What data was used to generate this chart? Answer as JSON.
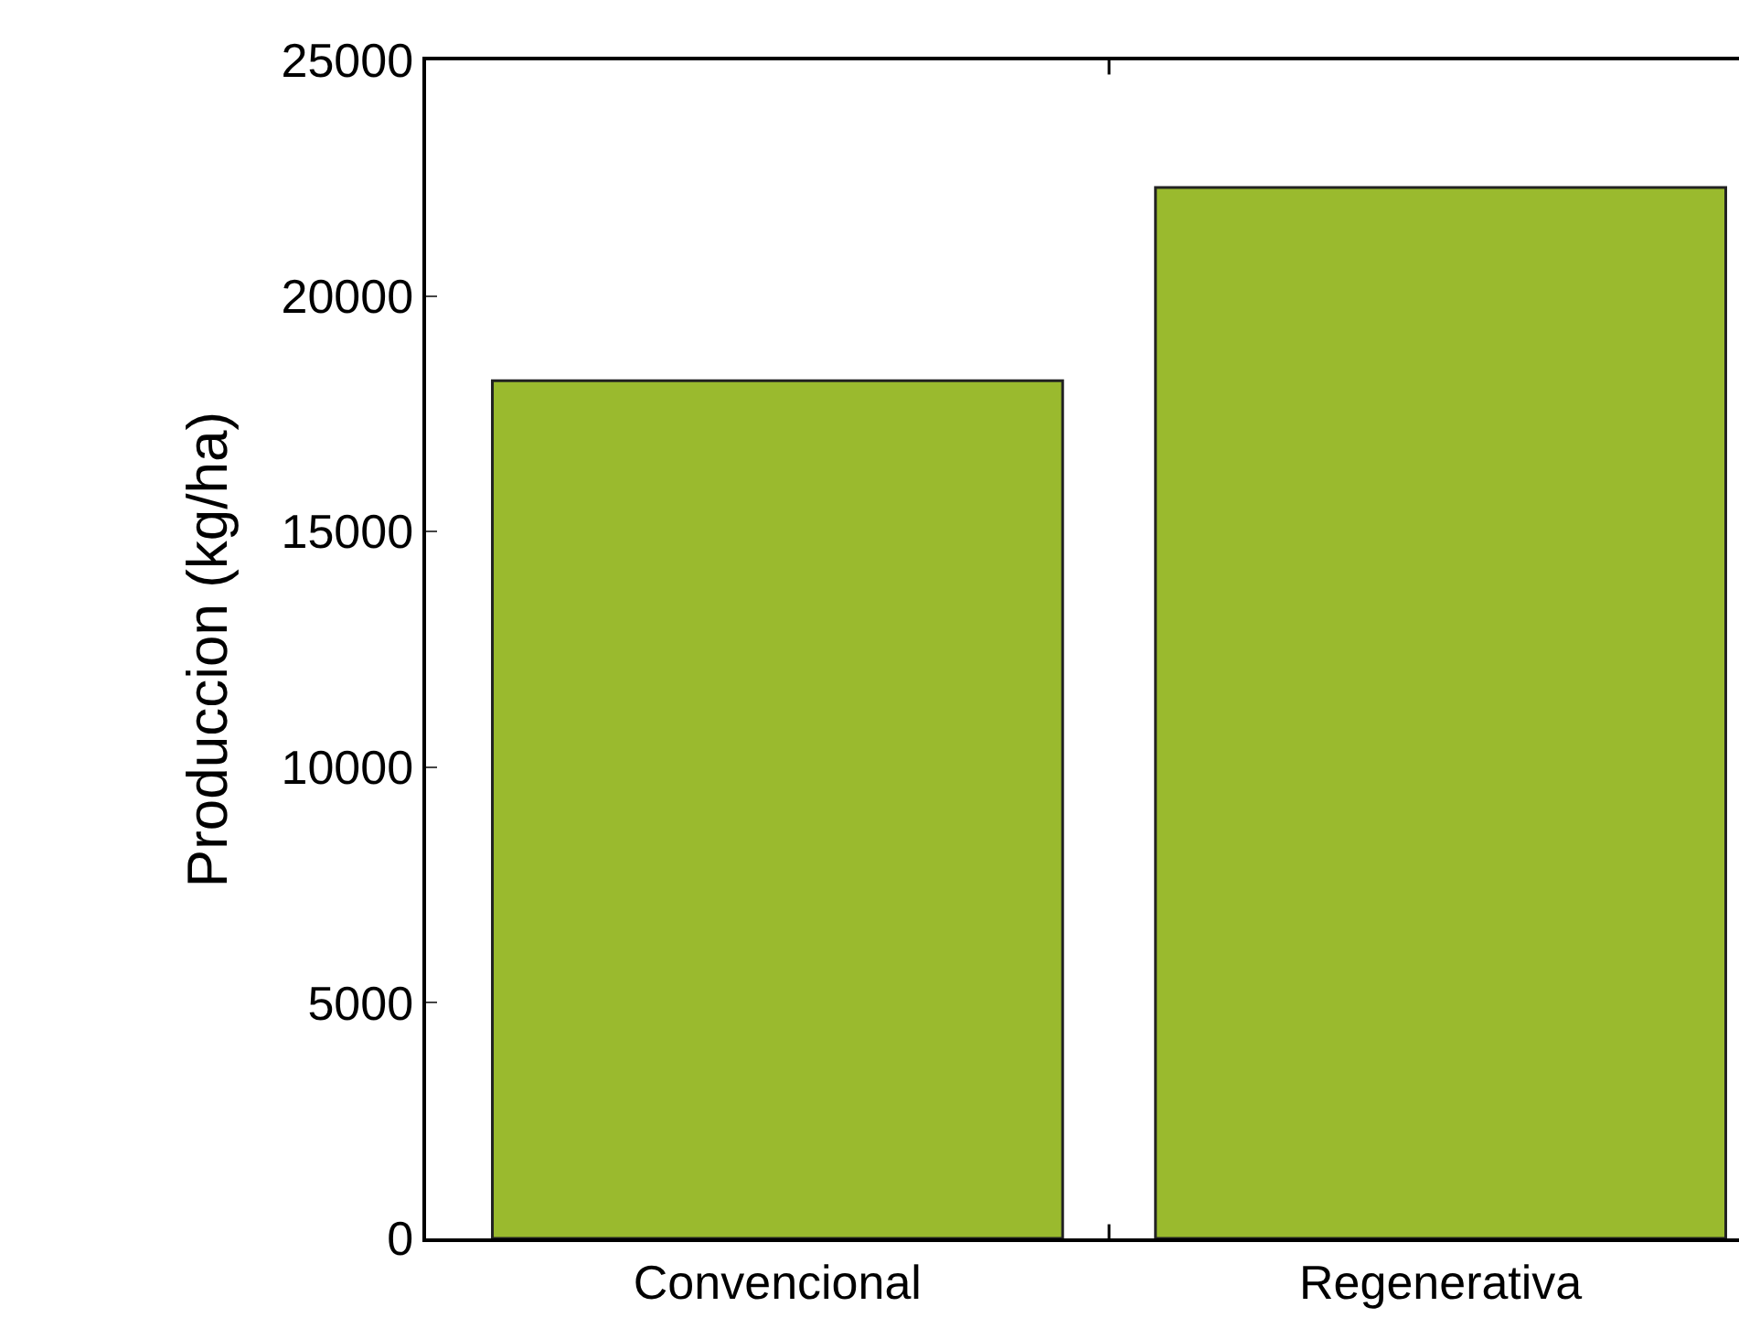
{
  "chart_data": {
    "type": "bar",
    "ylabel": "Produccion (kg/ha)",
    "categories": [
      "Convencional",
      "Regenerativa"
    ],
    "values": [
      18200,
      22300
    ],
    "color": "#9aba2e",
    "ylim": [
      0,
      25000
    ],
    "yticks": [
      0,
      5000,
      10000,
      15000,
      20000,
      25000
    ],
    "grid": false
  }
}
